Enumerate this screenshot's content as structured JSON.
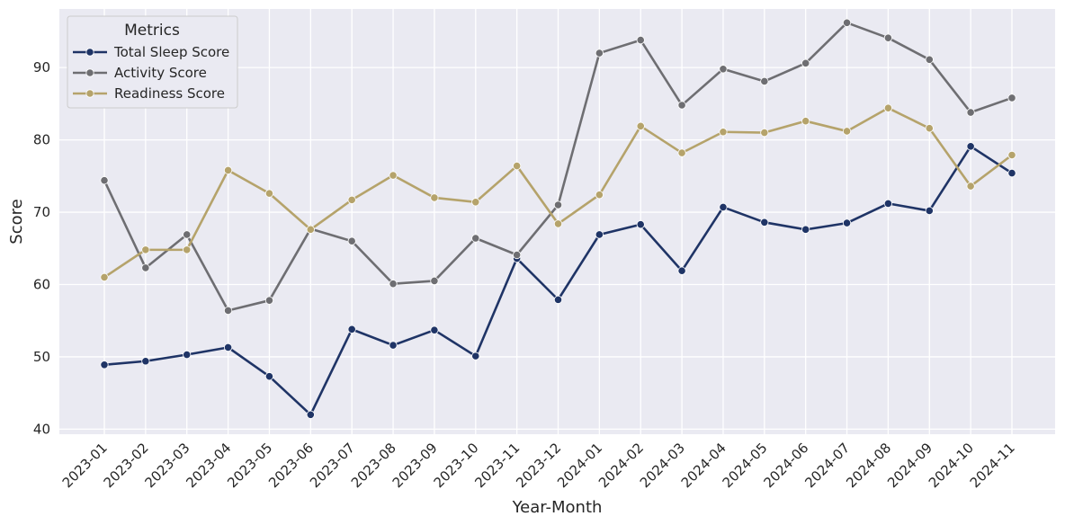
{
  "chart_data": {
    "type": "line",
    "xlabel": "Year-Month",
    "ylabel": "Score",
    "ylim": [
      39.3,
      98.1
    ],
    "yticks": [
      40,
      50,
      60,
      70,
      80,
      90
    ],
    "grid": true,
    "legend_title": "Metrics",
    "legend_position": "top-left",
    "categories": [
      "2023-01",
      "2023-02",
      "2023-03",
      "2023-04",
      "2023-05",
      "2023-06",
      "2023-07",
      "2023-08",
      "2023-09",
      "2023-10",
      "2023-11",
      "2023-12",
      "2024-01",
      "2024-02",
      "2024-03",
      "2024-04",
      "2024-05",
      "2024-06",
      "2024-07",
      "2024-08",
      "2024-09",
      "2024-10",
      "2024-11"
    ],
    "series": [
      {
        "name": "Total Sleep Score",
        "color": "#1f3466",
        "values": [
          48.9,
          49.4,
          50.3,
          51.3,
          47.3,
          42.0,
          53.8,
          51.6,
          53.7,
          50.1,
          63.6,
          57.9,
          66.9,
          68.3,
          61.9,
          70.7,
          68.6,
          67.6,
          68.5,
          71.2,
          70.2,
          79.1,
          75.4
        ]
      },
      {
        "name": "Activity Score",
        "color": "#6e6e72",
        "values": [
          74.4,
          62.3,
          66.9,
          56.4,
          57.8,
          67.7,
          66.0,
          60.1,
          60.5,
          66.4,
          64.1,
          71.0,
          92.0,
          93.8,
          84.8,
          89.8,
          88.1,
          90.6,
          96.2,
          94.1,
          91.1,
          83.8,
          85.8
        ]
      },
      {
        "name": "Readiness Score",
        "color": "#b5a36b",
        "values": [
          61.0,
          64.8,
          64.8,
          75.8,
          72.6,
          67.6,
          71.7,
          75.1,
          72.0,
          71.4,
          76.4,
          68.4,
          72.4,
          81.9,
          78.2,
          81.1,
          81.0,
          82.6,
          81.2,
          84.4,
          81.6,
          73.6,
          77.9
        ]
      }
    ]
  }
}
